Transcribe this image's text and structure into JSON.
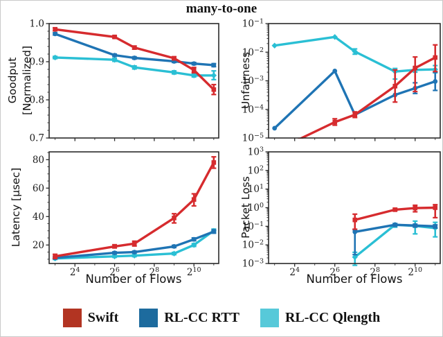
{
  "title": "many-to-one",
  "legend": [
    {
      "label": "Swift",
      "color": "#b23422"
    },
    {
      "label": "RL-CC RTT",
      "color": "#1d6b9e"
    },
    {
      "label": "RL-CC Qlength",
      "color": "#57c9d9"
    }
  ],
  "x_axis": {
    "label": "Number of Flows",
    "scale": "log2",
    "tick_exponents": [
      4,
      6,
      8,
      10
    ],
    "tick_labels": [
      "2^4",
      "2^6",
      "2^8",
      "2^10"
    ],
    "minor_exponents": [
      3,
      5,
      7,
      9,
      11
    ],
    "xlim_exponents": [
      2.7,
      11.25
    ]
  },
  "chart_data": [
    {
      "id": "goodput",
      "type": "line",
      "ylabel": "Goodput [Normalized]",
      "ylabel_lines": [
        "Goodput",
        "[Normalized]"
      ],
      "yscale": "linear",
      "ylim": [
        0.7,
        1.0
      ],
      "yticks": [
        1.0,
        0.9,
        0.8,
        0.7
      ],
      "ytick_labels": [
        "1.0",
        "0.9",
        "0.8",
        "0.7"
      ],
      "yminor_step": 0.02,
      "x_exponents": [
        3,
        6,
        7,
        9,
        10,
        11
      ],
      "series": [
        {
          "name": "Swift",
          "color": "#d62b2e",
          "marker": "square",
          "values": [
            0.985,
            0.965,
            0.937,
            0.909,
            0.878,
            0.827
          ],
          "err": [
            [
              0.981,
              0.989
            ],
            [
              0.962,
              0.968
            ],
            [
              0.933,
              0.941
            ],
            [
              0.905,
              0.913
            ],
            [
              0.871,
              0.885
            ],
            [
              0.814,
              0.84
            ]
          ]
        },
        {
          "name": "RL-CC RTT",
          "color": "#1f74b4",
          "marker": "circle",
          "values": [
            0.973,
            0.917,
            0.91,
            0.901,
            0.895,
            0.891
          ],
          "err": [
            [
              0.97,
              0.976
            ],
            [
              0.914,
              0.92
            ],
            [
              0.907,
              0.913
            ],
            [
              0.898,
              0.904
            ],
            [
              0.892,
              0.898
            ],
            [
              0.887,
              0.895
            ]
          ]
        },
        {
          "name": "RL-CC Qlength",
          "color": "#2abfd4",
          "marker": "diamond",
          "values": [
            0.911,
            0.905,
            0.885,
            0.872,
            0.864,
            0.864
          ],
          "err": [
            [
              0.908,
              0.914
            ],
            [
              0.901,
              0.909
            ],
            [
              0.881,
              0.889
            ],
            [
              0.868,
              0.876
            ],
            [
              0.86,
              0.868
            ],
            [
              0.853,
              0.876
            ]
          ]
        }
      ]
    },
    {
      "id": "unfairness",
      "type": "line",
      "ylabel": "Unfairness",
      "yscale": "log",
      "ylim_exp": [
        -5,
        -1
      ],
      "x_exponents": [
        3,
        6,
        7,
        9,
        10,
        11
      ],
      "series": [
        {
          "name": "Swift",
          "color": "#d62b2e",
          "marker": "square",
          "values": [
            3.5e-06,
            3.6e-05,
            6.5e-05,
            0.00065,
            0.0028,
            0.0065
          ],
          "err": [
            null,
            [
              2.8e-05,
              4.7e-05
            ],
            [
              5.2e-05,
              8.2e-05
            ],
            [
              0.00018,
              0.0024
            ],
            [
              0.00042,
              0.0068
            ],
            [
              0.0021,
              0.018
            ]
          ]
        },
        {
          "name": "RL-CC RTT",
          "color": "#1f74b4",
          "marker": "circle",
          "values": [
            2.2e-05,
            0.0022,
            6.5e-05,
            0.00032,
            0.00055,
            0.00095
          ],
          "err": [
            null,
            null,
            null,
            null,
            [
              0.00036,
              0.00085
            ],
            [
              0.00046,
              0.002
            ]
          ]
        },
        {
          "name": "RL-CC Qlength",
          "color": "#2abfd4",
          "marker": "diamond",
          "values": [
            0.017,
            0.034,
            0.0105,
            0.0021,
            0.0024,
            0.0025
          ],
          "err": [
            null,
            null,
            [
              0.0085,
              0.013
            ],
            [
              0.00115,
              0.0027
            ],
            [
              0.002,
              0.003
            ],
            [
              0.0019,
              0.0034
            ]
          ]
        }
      ]
    },
    {
      "id": "latency",
      "type": "line",
      "ylabel": "Latency [μsec]",
      "yscale": "linear",
      "ylim": [
        7,
        85.5
      ],
      "yticks": [
        80,
        60,
        40,
        20
      ],
      "ytick_labels": [
        "80",
        "60",
        "40",
        "20"
      ],
      "yminor_step": 5,
      "x_exponents": [
        3,
        6,
        7,
        9,
        10,
        11
      ],
      "series": [
        {
          "name": "Swift",
          "color": "#d62b2e",
          "marker": "square",
          "values": [
            12,
            19,
            21,
            39,
            52,
            78
          ],
          "err": [
            [
              10.5,
              13.5
            ],
            [
              18,
              20.2
            ],
            [
              19.3,
              22.7
            ],
            [
              35.5,
              42
            ],
            [
              47.5,
              56
            ],
            [
              74,
              82
            ]
          ]
        },
        {
          "name": "RL-CC RTT",
          "color": "#1f74b4",
          "marker": "circle",
          "values": [
            11,
            14.5,
            15,
            19,
            24,
            29.5
          ],
          "err": [
            [
              10.2,
              11.8
            ],
            [
              13.8,
              15.2
            ],
            [
              14.3,
              15.7
            ],
            [
              18.2,
              19.8
            ],
            [
              23,
              25
            ],
            [
              28.3,
              30.7
            ]
          ]
        },
        {
          "name": "RL-CC Qlength",
          "color": "#2abfd4",
          "marker": "diamond",
          "values": [
            10.5,
            12,
            12.5,
            14,
            20,
            30
          ],
          "err": [
            [
              9.8,
              11.2
            ],
            [
              11.3,
              12.7
            ],
            [
              11.8,
              13.2
            ],
            [
              13.2,
              14.8
            ],
            [
              19,
              21
            ],
            [
              28.8,
              31.2
            ]
          ]
        }
      ]
    },
    {
      "id": "packet-loss",
      "type": "line",
      "ylabel": "Packet Loss",
      "yscale": "log",
      "ylim_exp": [
        -3,
        3
      ],
      "x_exponents": [
        7,
        9,
        10,
        11
      ],
      "series": [
        {
          "name": "Swift",
          "color": "#d62b2e",
          "marker": "square",
          "values": [
            0.22,
            0.78,
            0.95,
            1.0
          ],
          "err": [
            [
              0.07,
              0.45
            ],
            [
              0.68,
              0.92
            ],
            [
              0.6,
              1.35
            ],
            [
              0.29,
              1.45
            ]
          ]
        },
        {
          "name": "RL-CC RTT",
          "color": "#1f74b4",
          "marker": "circle",
          "values": [
            0.05,
            0.12,
            0.11,
            0.1
          ],
          "err": [
            [
              0.003,
              0.065
            ],
            [
              0.1,
              0.14
            ],
            [
              0.09,
              0.13
            ],
            [
              0.08,
              0.12
            ]
          ]
        },
        {
          "name": "RL-CC Qlength",
          "color": "#2abfd4",
          "marker": "diamond",
          "values": [
            0.0022,
            0.12,
            0.105,
            0.08
          ],
          "err": [
            [
              0.0008,
              0.004
            ],
            [
              0.09,
              0.14
            ],
            [
              0.039,
              0.19
            ],
            [
              0.027,
              0.163
            ]
          ]
        }
      ]
    }
  ]
}
